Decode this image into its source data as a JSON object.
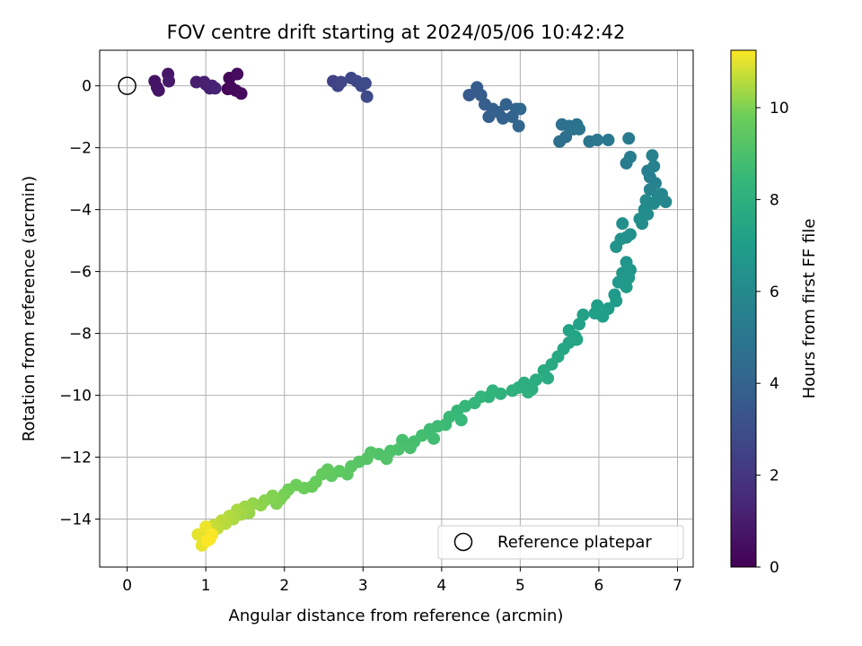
{
  "chart_data": {
    "type": "scatter",
    "title": "FOV centre drift starting at 2024/05/06 10:42:42",
    "xlabel": "Angular distance from reference (arcmin)",
    "ylabel": "Rotation from reference (arcmin)",
    "xlim": [
      -0.35,
      7.2
    ],
    "ylim": [
      -15.55,
      1.15
    ],
    "xticks": [
      0,
      1,
      2,
      3,
      4,
      5,
      6,
      7
    ],
    "yticks": [
      0,
      -2,
      -4,
      -6,
      -8,
      -10,
      -12,
      -14
    ],
    "xtick_labels": [
      "0",
      "1",
      "2",
      "3",
      "4",
      "5",
      "6",
      "7"
    ],
    "ytick_labels": [
      "0",
      "−2",
      "−4",
      "−6",
      "−8",
      "−10",
      "−12",
      "−14"
    ],
    "grid": true,
    "legend": {
      "placement": "lower-right",
      "entries": [
        "Reference platepar"
      ]
    },
    "reference_point": {
      "x": 0,
      "y": 0,
      "label": "Reference platepar"
    },
    "colorbar": {
      "label": "Hours from first FF file",
      "colormap": "viridis",
      "range": [
        0,
        11.25
      ],
      "ticks": [
        0,
        2,
        4,
        6,
        8,
        10
      ],
      "tick_labels": [
        "0",
        "2",
        "4",
        "6",
        "8",
        "10"
      ]
    },
    "points": [
      [
        0.35,
        0.15,
        0.6
      ],
      [
        0.38,
        -0.05,
        0.65
      ],
      [
        0.4,
        -0.15,
        0.7
      ],
      [
        0.52,
        0.38,
        0.8
      ],
      [
        0.53,
        0.15,
        0.85
      ],
      [
        0.88,
        0.12,
        1.0
      ],
      [
        0.98,
        0.12,
        1.05
      ],
      [
        1.0,
        0.05,
        1.1
      ],
      [
        1.05,
        -0.08,
        1.15
      ],
      [
        1.08,
        0.0,
        1.2
      ],
      [
        1.12,
        -0.08,
        1.22
      ],
      [
        1.28,
        -0.1,
        0.15
      ],
      [
        1.3,
        0.25,
        0.2
      ],
      [
        1.32,
        -0.05,
        0.25
      ],
      [
        1.38,
        -0.15,
        0.3
      ],
      [
        1.4,
        0.38,
        0.35
      ],
      [
        1.45,
        -0.25,
        0.4
      ],
      [
        2.62,
        0.15,
        2.5
      ],
      [
        2.68,
        0.0,
        2.55
      ],
      [
        2.72,
        0.12,
        2.6
      ],
      [
        2.85,
        0.25,
        2.65
      ],
      [
        2.92,
        0.15,
        2.7
      ],
      [
        2.98,
        0.0,
        2.75
      ],
      [
        3.05,
        -0.35,
        2.8
      ],
      [
        3.03,
        0.08,
        2.85
      ],
      [
        4.35,
        -0.3,
        3.6
      ],
      [
        4.45,
        -0.05,
        3.65
      ],
      [
        4.5,
        -0.3,
        3.7
      ],
      [
        4.55,
        -0.6,
        3.75
      ],
      [
        4.6,
        -1.0,
        3.8
      ],
      [
        4.65,
        -0.75,
        3.85
      ],
      [
        4.72,
        -0.85,
        3.9
      ],
      [
        4.78,
        -1.05,
        3.95
      ],
      [
        4.82,
        -0.6,
        4.0
      ],
      [
        4.9,
        -1.0,
        4.05
      ],
      [
        4.95,
        -0.75,
        4.1
      ],
      [
        4.98,
        -1.3,
        4.15
      ],
      [
        5.0,
        -0.75,
        4.2
      ],
      [
        5.5,
        -1.8,
        4.6
      ],
      [
        5.53,
        -1.25,
        4.65
      ],
      [
        5.58,
        -1.65,
        4.7
      ],
      [
        5.62,
        -1.3,
        4.75
      ],
      [
        5.68,
        -1.4,
        4.8
      ],
      [
        5.72,
        -1.25,
        4.85
      ],
      [
        5.75,
        -1.4,
        4.9
      ],
      [
        5.88,
        -1.8,
        5.0
      ],
      [
        5.98,
        -1.75,
        5.05
      ],
      [
        6.12,
        -1.75,
        5.1
      ],
      [
        6.38,
        -1.7,
        5.2
      ],
      [
        6.35,
        -2.5,
        5.3
      ],
      [
        6.4,
        -2.3,
        5.35
      ],
      [
        6.62,
        -2.75,
        5.45
      ],
      [
        6.65,
        -2.95,
        5.5
      ],
      [
        6.68,
        -2.25,
        5.55
      ],
      [
        6.72,
        -3.15,
        5.6
      ],
      [
        6.7,
        -2.6,
        5.65
      ],
      [
        6.65,
        -3.35,
        5.7
      ],
      [
        6.8,
        -3.5,
        5.8
      ],
      [
        6.85,
        -3.75,
        5.85
      ],
      [
        6.75,
        -3.55,
        5.9
      ],
      [
        6.7,
        -3.8,
        6.0
      ],
      [
        6.6,
        -3.7,
        6.05
      ],
      [
        6.58,
        -4.0,
        6.1
      ],
      [
        6.62,
        -4.15,
        6.15
      ],
      [
        6.52,
        -4.3,
        6.2
      ],
      [
        6.55,
        -4.45,
        6.25
      ],
      [
        6.3,
        -4.45,
        6.3
      ],
      [
        6.35,
        -4.9,
        6.35
      ],
      [
        6.4,
        -4.8,
        6.4
      ],
      [
        6.28,
        -4.95,
        6.45
      ],
      [
        6.22,
        -5.2,
        6.5
      ],
      [
        6.35,
        -5.7,
        6.6
      ],
      [
        6.4,
        -5.95,
        6.65
      ],
      [
        6.3,
        -6.05,
        6.7
      ],
      [
        6.38,
        -6.2,
        6.75
      ],
      [
        6.25,
        -6.35,
        6.8
      ],
      [
        6.2,
        -6.75,
        6.85
      ],
      [
        6.35,
        -6.5,
        6.9
      ],
      [
        6.22,
        -6.95,
        6.95
      ],
      [
        6.12,
        -7.2,
        7.0
      ],
      [
        6.05,
        -7.45,
        7.05
      ],
      [
        5.98,
        -7.1,
        7.1
      ],
      [
        5.95,
        -7.35,
        7.15
      ],
      [
        5.8,
        -7.4,
        7.2
      ],
      [
        5.75,
        -7.7,
        7.25
      ],
      [
        5.62,
        -7.9,
        7.3
      ],
      [
        5.7,
        -8.1,
        7.35
      ],
      [
        5.62,
        -8.3,
        7.4
      ],
      [
        5.72,
        -8.2,
        7.45
      ],
      [
        5.55,
        -8.5,
        7.5
      ],
      [
        5.48,
        -8.75,
        7.55
      ],
      [
        5.4,
        -9.0,
        7.65
      ],
      [
        5.3,
        -9.2,
        7.7
      ],
      [
        5.35,
        -9.45,
        7.75
      ],
      [
        5.2,
        -9.5,
        7.8
      ],
      [
        5.15,
        -9.8,
        7.85
      ],
      [
        5.05,
        -9.6,
        7.9
      ],
      [
        4.98,
        -9.75,
        7.95
      ],
      [
        5.1,
        -9.9,
        8.0
      ],
      [
        4.9,
        -9.85,
        8.05
      ],
      [
        4.75,
        -9.95,
        8.1
      ],
      [
        4.6,
        -10.05,
        8.15
      ],
      [
        4.65,
        -9.85,
        8.2
      ],
      [
        4.5,
        -10.05,
        8.3
      ],
      [
        4.42,
        -10.25,
        8.35
      ],
      [
        4.3,
        -10.35,
        8.4
      ],
      [
        4.2,
        -10.5,
        8.45
      ],
      [
        4.25,
        -10.8,
        8.5
      ],
      [
        4.1,
        -10.7,
        8.55
      ],
      [
        4.05,
        -10.95,
        8.6
      ],
      [
        3.95,
        -11.0,
        8.65
      ],
      [
        3.85,
        -11.1,
        8.7
      ],
      [
        3.9,
        -11.4,
        8.75
      ],
      [
        3.75,
        -11.3,
        8.8
      ],
      [
        3.65,
        -11.5,
        8.85
      ],
      [
        3.5,
        -11.45,
        8.9
      ],
      [
        3.6,
        -11.7,
        8.95
      ],
      [
        3.45,
        -11.75,
        9.0
      ],
      [
        3.35,
        -11.8,
        9.05
      ],
      [
        3.2,
        -11.9,
        9.1
      ],
      [
        3.1,
        -11.85,
        9.15
      ],
      [
        3.3,
        -12.05,
        9.2
      ],
      [
        3.05,
        -12.05,
        9.25
      ],
      [
        2.95,
        -12.15,
        9.3
      ],
      [
        2.85,
        -12.3,
        9.35
      ],
      [
        2.8,
        -12.55,
        9.4
      ],
      [
        2.7,
        -12.45,
        9.45
      ],
      [
        2.6,
        -12.6,
        9.5
      ],
      [
        2.55,
        -12.4,
        9.55
      ],
      [
        2.48,
        -12.55,
        9.6
      ],
      [
        2.4,
        -12.8,
        9.65
      ],
      [
        2.35,
        -12.95,
        9.7
      ],
      [
        2.25,
        -13.0,
        9.75
      ],
      [
        2.15,
        -12.9,
        9.8
      ],
      [
        2.05,
        -13.05,
        9.85
      ],
      [
        2.0,
        -13.2,
        9.9
      ],
      [
        1.95,
        -13.35,
        9.95
      ],
      [
        1.9,
        -13.5,
        10.0
      ],
      [
        1.85,
        -13.25,
        10.05
      ],
      [
        1.75,
        -13.4,
        10.1
      ],
      [
        1.7,
        -13.55,
        10.15
      ],
      [
        1.6,
        -13.5,
        10.2
      ],
      [
        1.55,
        -13.8,
        10.25
      ],
      [
        1.5,
        -13.6,
        10.3
      ],
      [
        1.45,
        -13.85,
        10.35
      ],
      [
        1.4,
        -13.7,
        10.4
      ],
      [
        1.35,
        -14.0,
        10.45
      ],
      [
        1.3,
        -13.9,
        10.5
      ],
      [
        1.25,
        -14.15,
        10.55
      ],
      [
        1.2,
        -14.05,
        10.6
      ],
      [
        1.15,
        -14.3,
        10.65
      ],
      [
        1.1,
        -14.2,
        10.7
      ],
      [
        1.05,
        -14.45,
        10.75
      ],
      [
        1.0,
        -14.35,
        10.8
      ],
      [
        0.95,
        -14.55,
        10.9
      ],
      [
        0.9,
        -14.5,
        11.0
      ],
      [
        0.95,
        -14.85,
        11.05
      ],
      [
        1.0,
        -14.25,
        11.1
      ],
      [
        1.05,
        -14.65,
        11.15
      ],
      [
        1.08,
        -14.5,
        11.2
      ],
      [
        1.02,
        -14.7,
        11.25
      ]
    ]
  }
}
